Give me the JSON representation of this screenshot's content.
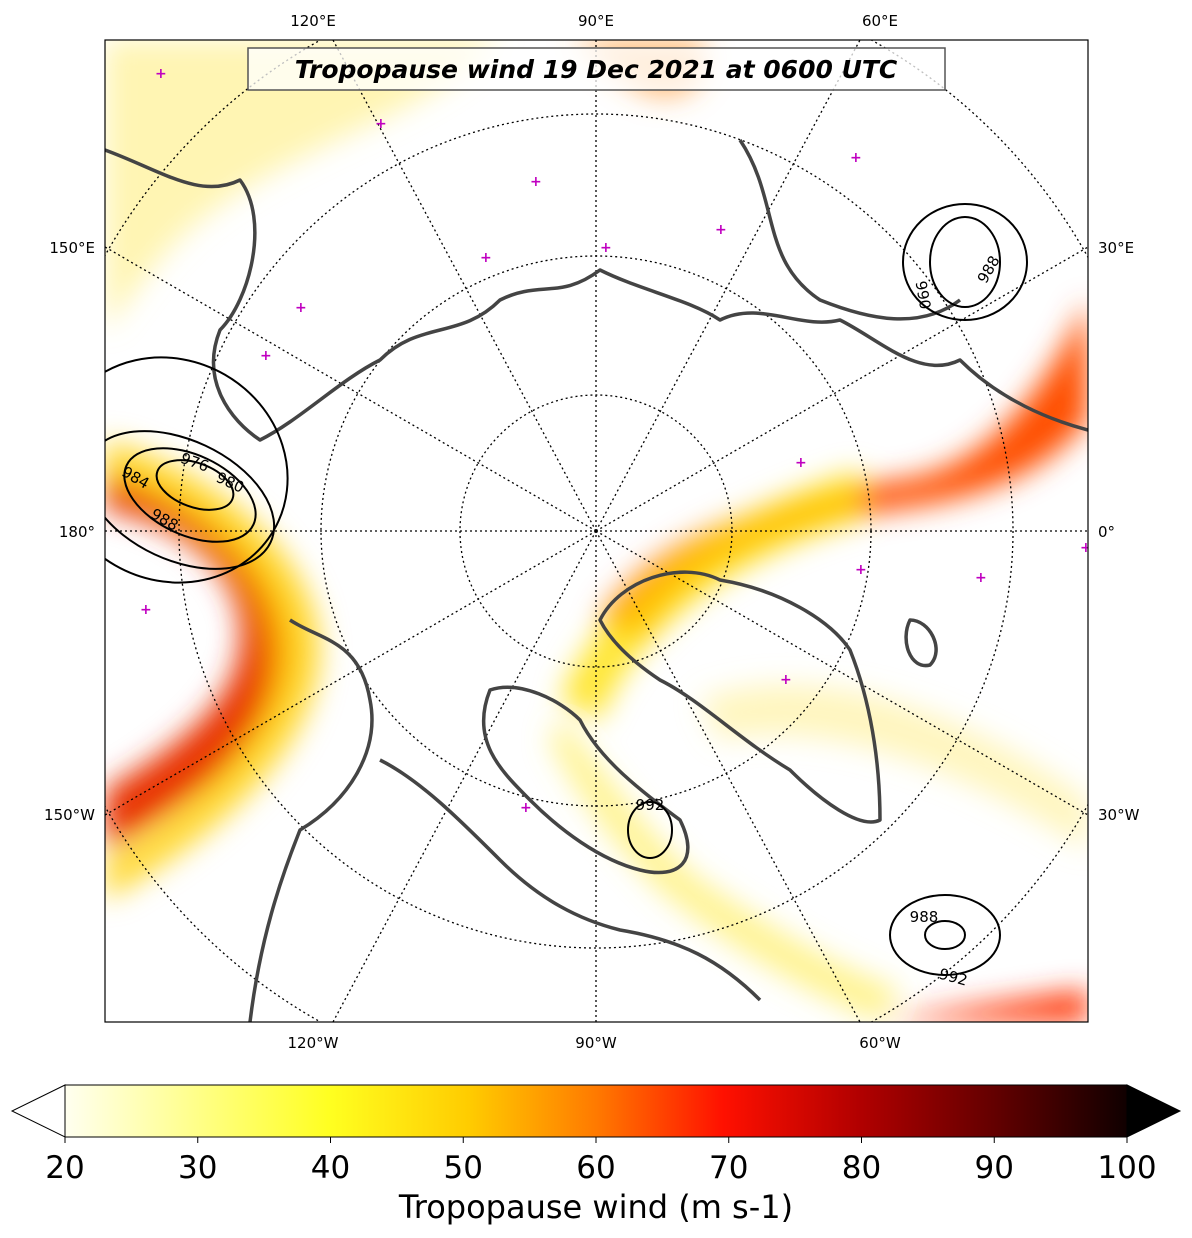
{
  "map": {
    "title": "Tropopause wind 19 Dec 2021 at 0600 UTC",
    "lon_labels": {
      "top": [
        "120°E",
        "90°E",
        "60°E"
      ],
      "left": [
        "150°E",
        "180°",
        "150°W"
      ],
      "right": [
        "30°E",
        "0°",
        "30°W"
      ],
      "bottom": [
        "120°W",
        "90°W",
        "60°W"
      ]
    },
    "contour_labels": [
      "976",
      "980",
      "984",
      "988",
      "988",
      "990",
      "992",
      "988",
      "992"
    ]
  },
  "colorbar": {
    "lim": [
      20,
      100
    ],
    "ticks": [
      20,
      30,
      40,
      50,
      60,
      70,
      80,
      90,
      100
    ],
    "label": "Tropopause wind (m s-1)"
  }
}
